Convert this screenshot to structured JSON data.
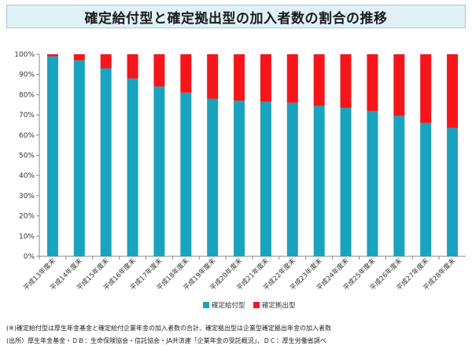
{
  "page": {
    "title": "確定給付型と確定拠出型の加入者数の割合の推移",
    "note1": "(※)確定給付型は厚生年金基金と確定給付企業年金の加入者数の合計、確定拠出型は企業型確定拠出年金の加入者数",
    "note2": "(出所）厚生年金基金・ＤＢ：生命保険協会・信託協会・JA共済連「企業年金の受託概況」、ＤＣ：厚生労働省調べ"
  },
  "chart_data": {
    "type": "bar",
    "stacked": true,
    "categories": [
      "平成13年度末",
      "平成14年度末",
      "平成15年度末",
      "平成16年度末",
      "平成17年度末",
      "平成18年度末",
      "平成19年度末",
      "平成20年度末",
      "平成21年度末",
      "平成22年度末",
      "平成23年度末",
      "平成24年度末",
      "平成25年度末",
      "平成26年度末",
      "平成27年度末",
      "平成28年度末"
    ],
    "series": [
      {
        "name": "確定給付型",
        "color": "#1aa3bf",
        "values": [
          99,
          97,
          93,
          88,
          84,
          81,
          78,
          77,
          76.5,
          76,
          74.5,
          73.5,
          72,
          69.5,
          66,
          63.5
        ]
      },
      {
        "name": "確定拠出型",
        "color": "#f5161c",
        "values": [
          1,
          3,
          7,
          12,
          16,
          19,
          22,
          23,
          23.5,
          24,
          25.5,
          26.5,
          28,
          30.5,
          34,
          36.5
        ]
      }
    ],
    "ylim": [
      0,
      100
    ],
    "yticks": [
      "0%",
      "10%",
      "20%",
      "30%",
      "40%",
      "50%",
      "60%",
      "70%",
      "80%",
      "90%",
      "100%"
    ],
    "legend_position": "bottom",
    "grid": false
  }
}
